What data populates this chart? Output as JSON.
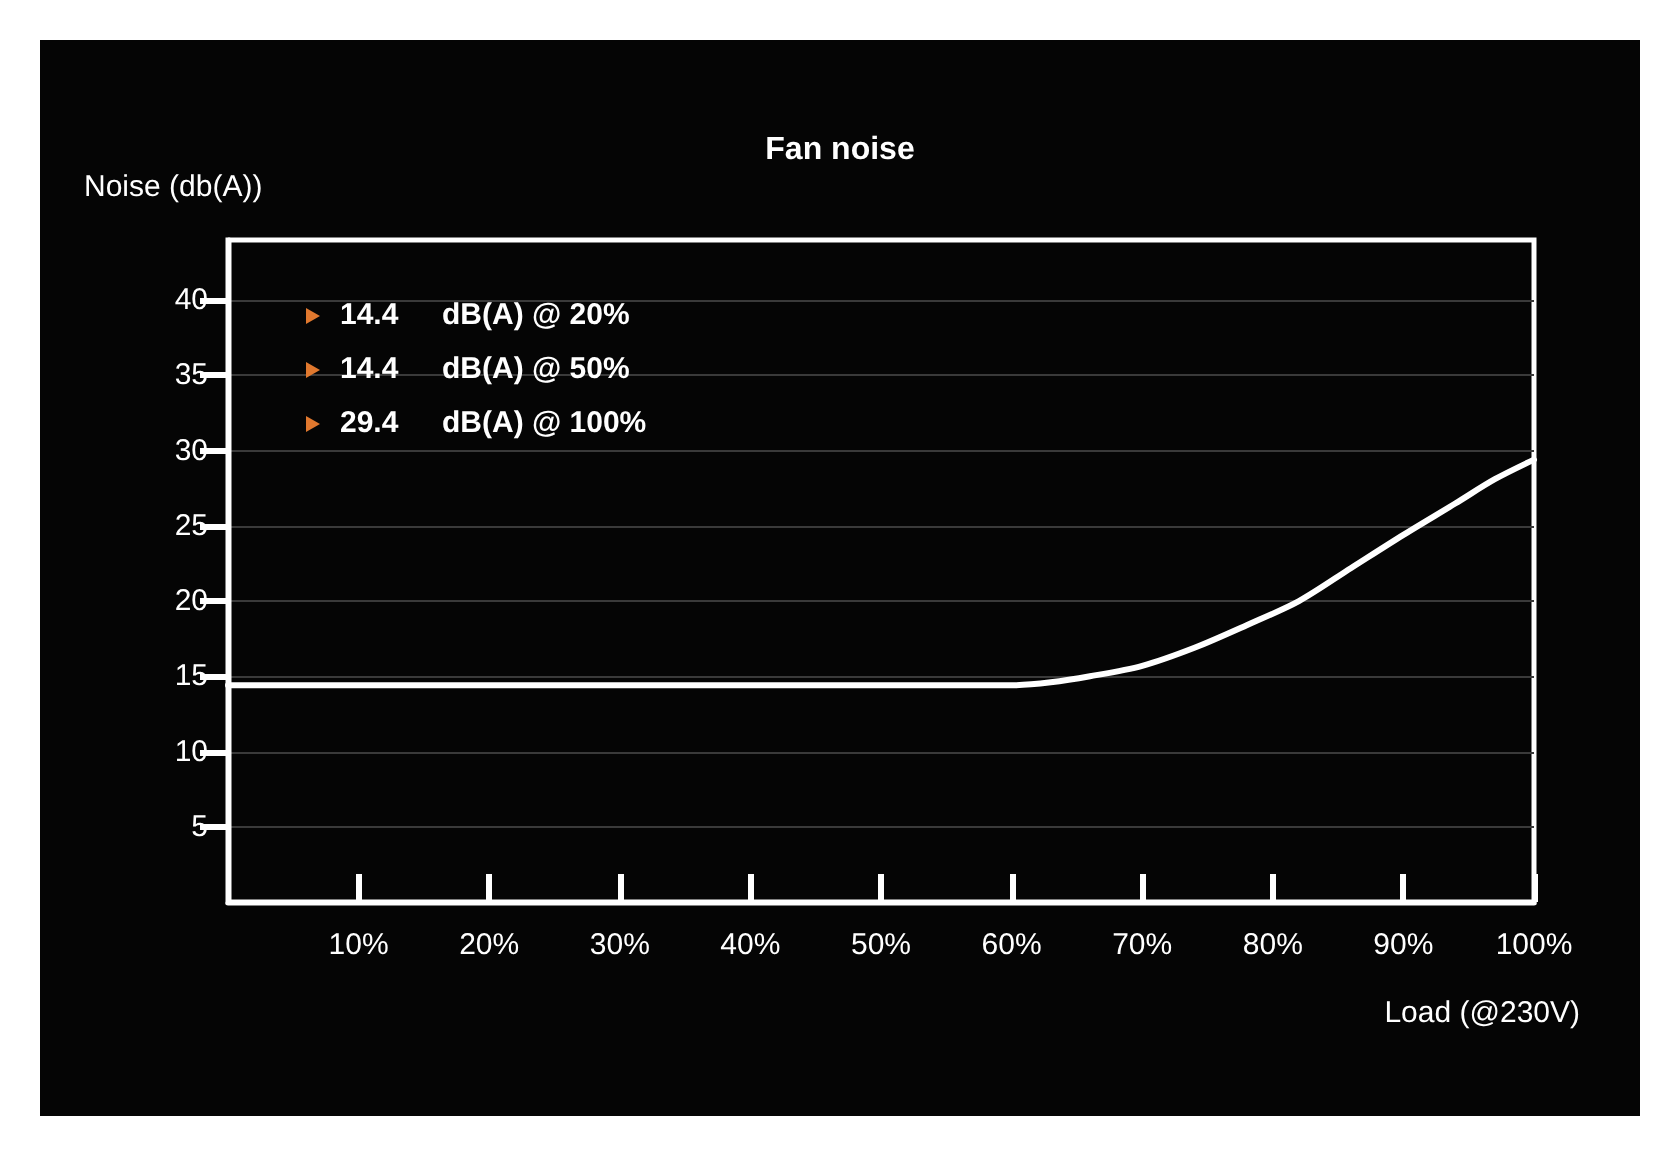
{
  "chart_data": {
    "type": "line",
    "title": "Fan noise",
    "ylabel": "Noise (db(A))",
    "xlabel": "Load (@230V)",
    "x": [
      0,
      10,
      20,
      30,
      40,
      50,
      55,
      60,
      63,
      66,
      70,
      74,
      78,
      82,
      86,
      90,
      94,
      97,
      100
    ],
    "series": [
      {
        "color": "#ffffff",
        "values": [
          14.4,
          14.4,
          14.4,
          14.4,
          14.4,
          14.4,
          14.4,
          14.4,
          14.6,
          15.0,
          15.7,
          16.9,
          18.4,
          20.0,
          22.2,
          24.4,
          26.5,
          28.1,
          29.4
        ]
      }
    ],
    "xlim": [
      0,
      100
    ],
    "xticks": [
      {
        "value": 10,
        "label": "10%"
      },
      {
        "value": 20,
        "label": "20%"
      },
      {
        "value": 30,
        "label": "30%"
      },
      {
        "value": 40,
        "label": "40%"
      },
      {
        "value": 50,
        "label": "50%"
      },
      {
        "value": 60,
        "label": "60%"
      },
      {
        "value": 70,
        "label": "70%"
      },
      {
        "value": 80,
        "label": "80%"
      },
      {
        "value": 90,
        "label": "90%"
      },
      {
        "value": 100,
        "label": "100%"
      }
    ],
    "ylim": [
      0,
      44
    ],
    "yticks": [
      5,
      10,
      15,
      20,
      25,
      30,
      35,
      40
    ],
    "grid": "y",
    "marker": "none",
    "line_style": "solid",
    "annotations": [
      "14.4 dB(A) @ 20%",
      "14.4 dB(A) @ 50%",
      "29.4 dB(A) @ 100%"
    ]
  }
}
